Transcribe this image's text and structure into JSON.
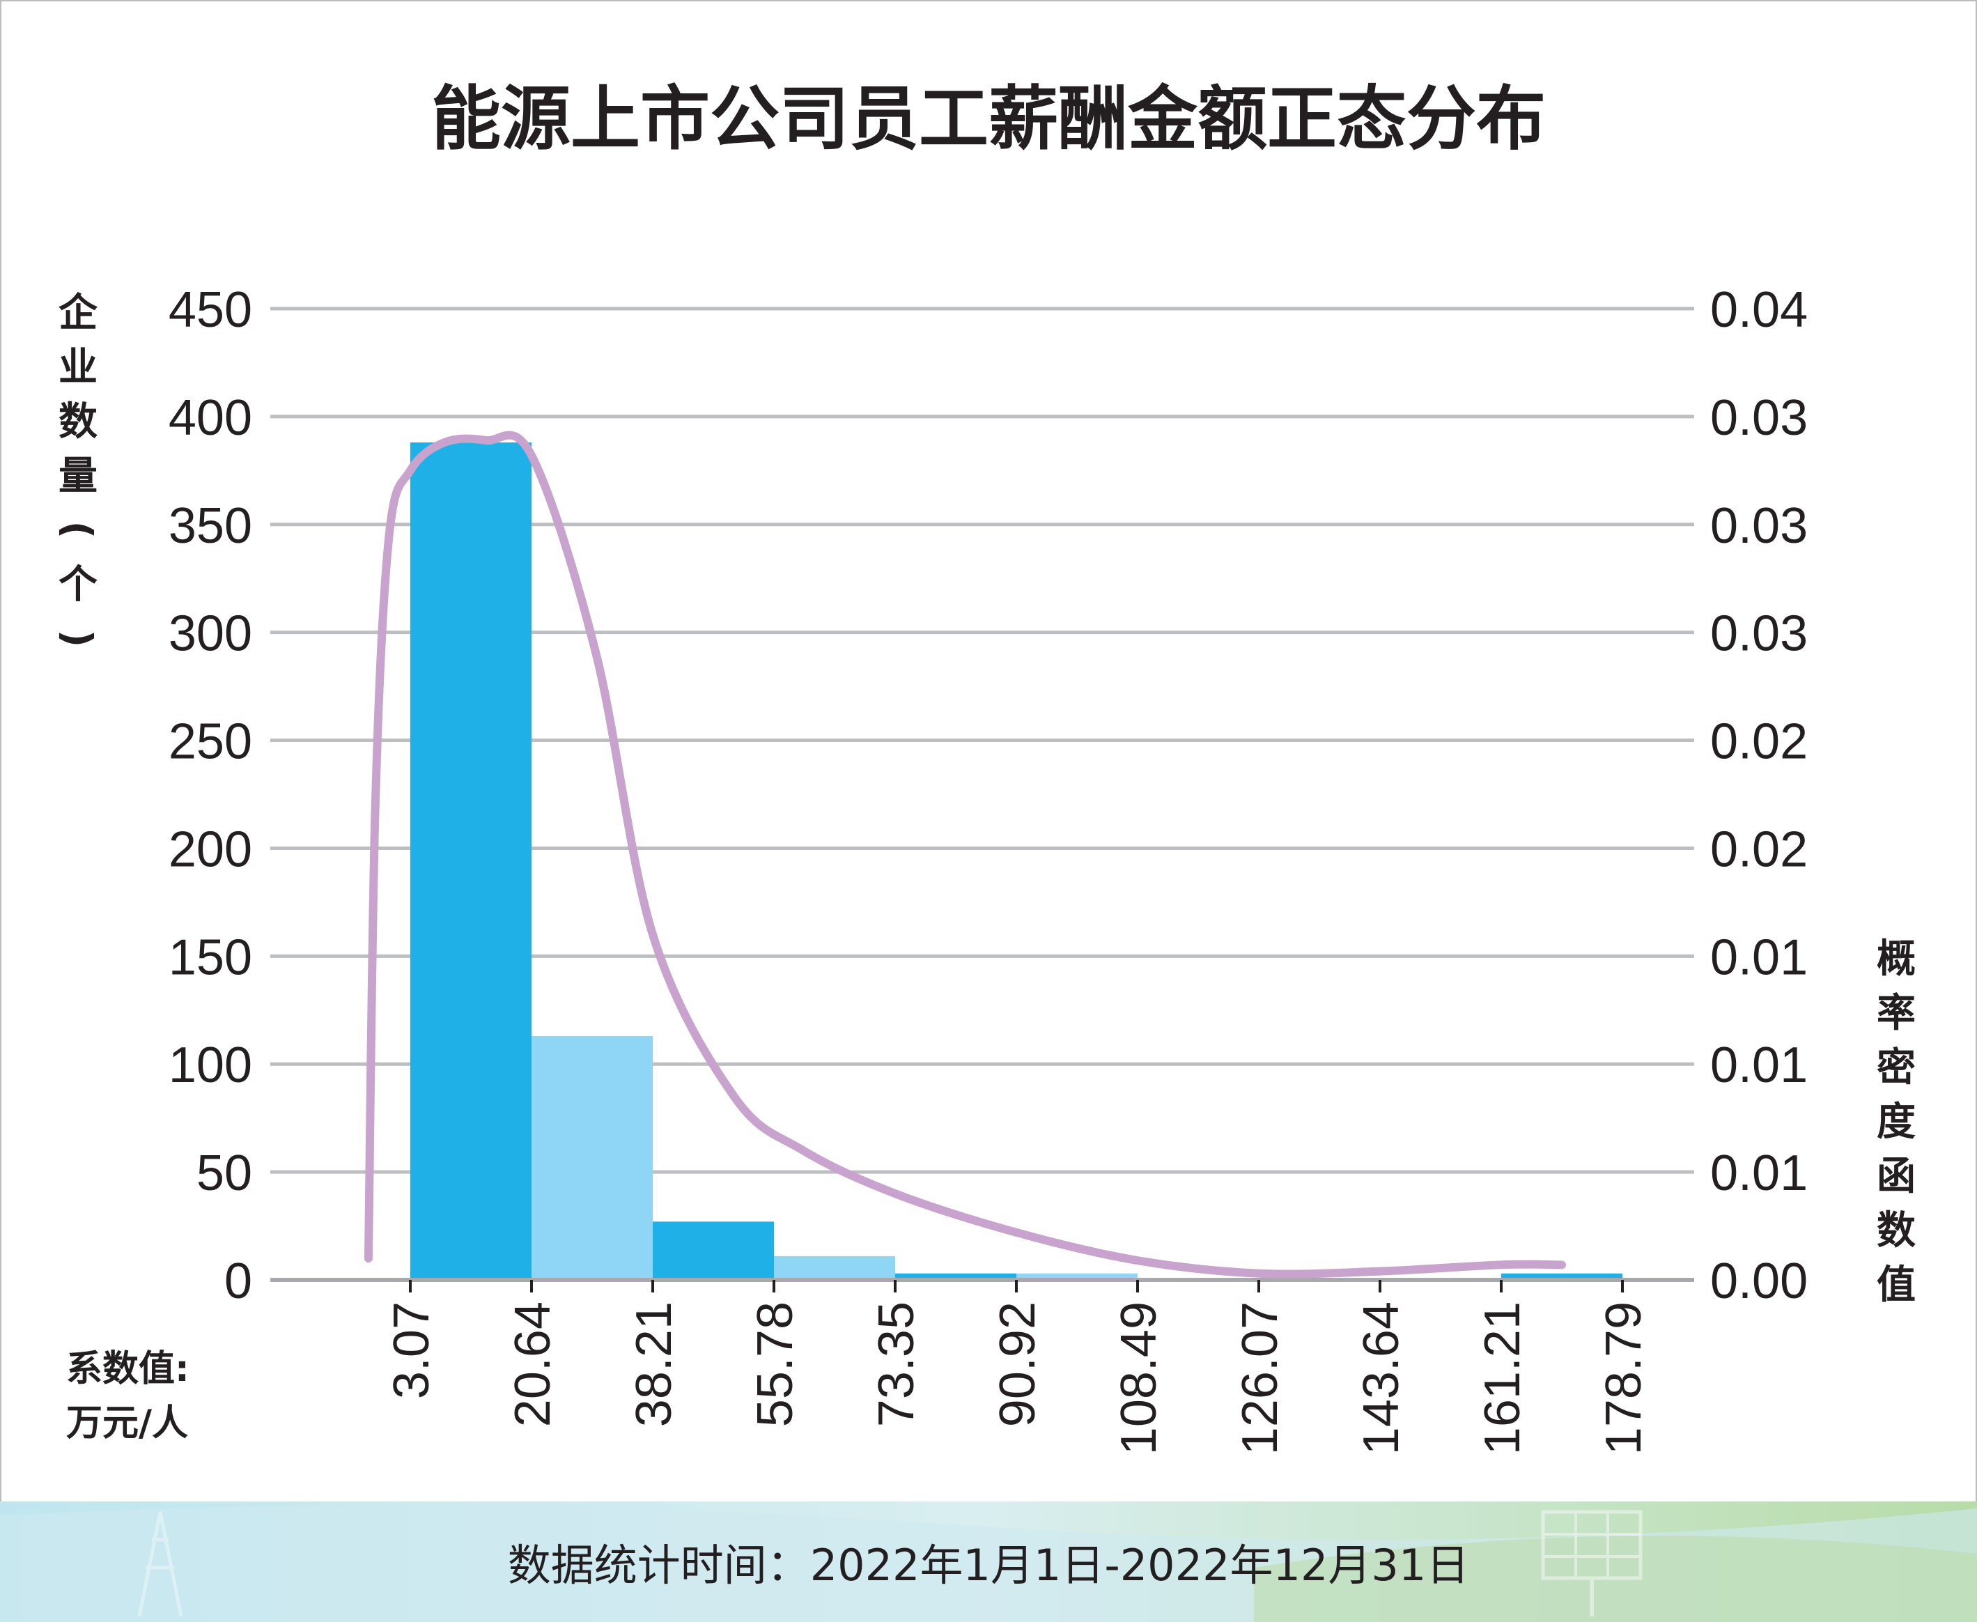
{
  "chart_data": {
    "type": "bar",
    "title": "能源上市公司员工薪酬金额正态分布",
    "ylabel_left": "企业数量(个)",
    "ylabel_right": "概率密度函数值",
    "xlabel": "系数值:\n万元/人",
    "footer": "数据统计时间：2022年1月1日-2022年12月31日",
    "ylim": [
      0,
      450
    ],
    "y_ticks": [
      "0",
      "50",
      "100",
      "150",
      "200",
      "250",
      "300",
      "350",
      "400",
      "450"
    ],
    "y2_ticks": [
      "0.00",
      "0.01",
      "0.01",
      "0.01",
      "0.02",
      "0.02",
      "0.03",
      "0.03",
      "0.03",
      "0.04"
    ],
    "x_ticks": [
      "3.07",
      "20.64",
      "38.21",
      "55.78",
      "73.35",
      "90.92",
      "108.49",
      "126.07",
      "143.64",
      "161.21",
      "178.79"
    ],
    "bars": [
      {
        "from": "3.07",
        "to": "20.64",
        "value": 388,
        "color": "#1eb0e6"
      },
      {
        "from": "20.64",
        "to": "38.21",
        "value": 113,
        "color": "#8fd6f6"
      },
      {
        "from": "38.21",
        "to": "55.78",
        "value": 27,
        "color": "#1eb0e6"
      },
      {
        "from": "55.78",
        "to": "73.35",
        "value": 11,
        "color": "#8fd6f6"
      },
      {
        "from": "73.35",
        "to": "90.92",
        "value": 3,
        "color": "#1eb0e6"
      },
      {
        "from": "90.92",
        "to": "108.49",
        "value": 3,
        "color": "#8fd6f6"
      },
      {
        "from": "161.21",
        "to": "178.79",
        "value": 3,
        "color": "#1eb0e6"
      }
    ],
    "curve": {
      "color": "#c7a3cd",
      "points": [
        [
          -3,
          10
        ],
        [
          -2,
          220
        ],
        [
          0,
          345
        ],
        [
          3.07,
          375
        ],
        [
          8,
          388
        ],
        [
          14,
          389
        ],
        [
          20.64,
          382
        ],
        [
          30,
          290
        ],
        [
          38.21,
          160
        ],
        [
          50,
          85
        ],
        [
          60,
          60
        ],
        [
          73.35,
          40
        ],
        [
          90.92,
          22
        ],
        [
          108.49,
          9
        ],
        [
          126.07,
          3
        ],
        [
          143.64,
          4
        ],
        [
          161.21,
          7
        ],
        [
          170,
          7
        ]
      ]
    },
    "grid": true
  }
}
